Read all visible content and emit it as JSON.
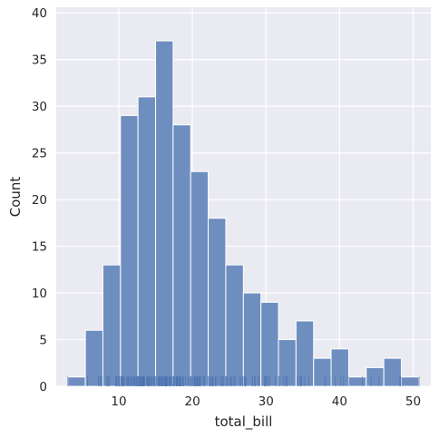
{
  "chart_data": {
    "type": "bar",
    "subtype": "histogram",
    "title": "",
    "xlabel": "total_bill",
    "ylabel": "Count",
    "xlim": [
      1.5,
      52.4
    ],
    "ylim": [
      0,
      40.6
    ],
    "xticks": [
      10,
      20,
      30,
      40,
      50
    ],
    "yticks": [
      0,
      5,
      10,
      15,
      20,
      25,
      30,
      35,
      40
    ],
    "grid": true,
    "legend": "none",
    "colors": {
      "background": "#EAEAF2",
      "bar": "#6E8EBF",
      "bar_edge": "#FFFFFF",
      "grid": "#FFFFFF",
      "rug": "#4C72B0"
    },
    "bins": [
      {
        "x0": 3.07,
        "x1": 5.46,
        "count": 1
      },
      {
        "x0": 5.46,
        "x1": 7.84,
        "count": 6
      },
      {
        "x0": 7.84,
        "x1": 10.23,
        "count": 13
      },
      {
        "x0": 10.23,
        "x1": 12.61,
        "count": 29
      },
      {
        "x0": 12.61,
        "x1": 15.0,
        "count": 31
      },
      {
        "x0": 15.0,
        "x1": 17.38,
        "count": 37
      },
      {
        "x0": 17.38,
        "x1": 19.77,
        "count": 28
      },
      {
        "x0": 19.77,
        "x1": 22.15,
        "count": 23
      },
      {
        "x0": 22.15,
        "x1": 24.54,
        "count": 18
      },
      {
        "x0": 24.54,
        "x1": 26.93,
        "count": 13
      },
      {
        "x0": 26.93,
        "x1": 29.31,
        "count": 10
      },
      {
        "x0": 29.31,
        "x1": 31.7,
        "count": 9
      },
      {
        "x0": 31.7,
        "x1": 34.08,
        "count": 5
      },
      {
        "x0": 34.08,
        "x1": 36.47,
        "count": 7
      },
      {
        "x0": 36.47,
        "x1": 38.85,
        "count": 3
      },
      {
        "x0": 38.85,
        "x1": 41.24,
        "count": 4
      },
      {
        "x0": 41.24,
        "x1": 43.62,
        "count": 1
      },
      {
        "x0": 43.62,
        "x1": 46.01,
        "count": 2
      },
      {
        "x0": 46.01,
        "x1": 48.39,
        "count": 3
      },
      {
        "x0": 48.39,
        "x1": 50.78,
        "count": 1
      }
    ],
    "rug_values": [
      16.99,
      10.34,
      21.01,
      23.68,
      24.59,
      25.29,
      8.77,
      26.88,
      15.04,
      14.78,
      10.27,
      35.26,
      15.42,
      18.43,
      14.83,
      21.58,
      10.33,
      16.29,
      16.97,
      20.65,
      17.92,
      20.29,
      15.77,
      39.42,
      19.82,
      17.81,
      13.37,
      12.69,
      21.7,
      19.65,
      9.55,
      18.35,
      15.06,
      20.69,
      17.78,
      24.06,
      16.31,
      16.93,
      18.69,
      31.27,
      16.04,
      17.46,
      13.94,
      9.68,
      30.4,
      18.29,
      22.23,
      32.4,
      28.55,
      18.04,
      12.54,
      10.29,
      34.81,
      9.94,
      25.56,
      19.49,
      38.01,
      26.41,
      11.24,
      48.27,
      20.29,
      13.81,
      11.02,
      18.29,
      17.59,
      20.08,
      16.45,
      3.07,
      20.23,
      15.01,
      12.02,
      17.07,
      26.86,
      25.28,
      14.73,
      10.51,
      17.92,
      27.2,
      22.76,
      17.29,
      19.44,
      16.66,
      10.07,
      32.68,
      15.98,
      34.83,
      13.03,
      18.28,
      24.71,
      21.16,
      28.97,
      22.49,
      5.75,
      16.32,
      22.75,
      40.17,
      27.28,
      12.03,
      21.01,
      12.46,
      11.35,
      15.38,
      44.3,
      22.42,
      20.92,
      15.36,
      20.49,
      25.21,
      18.24,
      14.31,
      14.0,
      7.25,
      38.07,
      23.95,
      25.71,
      17.31,
      29.93,
      10.65,
      12.43,
      24.08,
      11.69,
      13.42,
      14.26,
      15.95,
      12.48,
      29.8,
      8.52,
      14.52,
      11.38,
      22.82,
      19.08,
      20.27,
      11.17,
      12.26,
      18.26,
      8.51,
      10.33,
      14.15,
      16.0,
      13.16,
      17.47,
      34.3,
      41.19,
      27.05,
      16.43,
      8.35,
      18.64,
      11.87,
      9.78,
      7.51,
      14.07,
      13.13,
      17.26,
      24.55,
      19.77,
      29.85,
      48.17,
      25.0,
      13.39,
      16.49,
      21.5,
      12.66,
      16.21,
      13.81,
      17.51,
      24.52,
      20.76,
      31.71,
      10.59,
      10.63,
      50.81,
      15.81,
      7.25,
      31.85,
      16.82,
      32.9,
      17.89,
      14.48,
      9.6,
      34.63,
      34.65,
      23.33,
      45.35,
      23.17,
      40.55,
      20.69,
      20.9,
      30.46,
      18.15,
      23.1,
      15.69,
      19.81,
      28.44,
      15.48,
      16.58,
      7.56,
      10.34,
      43.11,
      13.0,
      13.51,
      18.71,
      12.74,
      13.0,
      16.4,
      20.53,
      16.47,
      26.59,
      38.73,
      24.27,
      12.76,
      30.06,
      25.89,
      48.33,
      13.27,
      28.17,
      12.9,
      28.15,
      11.59,
      7.74,
      30.14,
      12.16,
      13.42,
      8.58,
      15.98,
      13.42,
      16.27,
      10.09,
      20.45,
      13.28,
      22.12,
      24.01,
      15.69,
      11.61,
      10.77,
      15.53,
      10.07,
      12.6,
      32.83,
      35.83,
      29.03,
      27.18,
      22.67,
      17.82,
      18.78
    ]
  }
}
